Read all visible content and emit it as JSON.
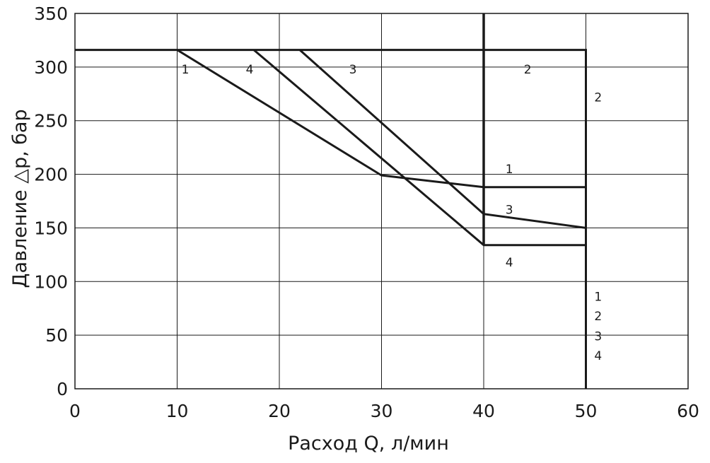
{
  "chart_data": {
    "type": "line",
    "xlabel": "Расход Q, л/мин",
    "ylabel": "Давление △p, бар",
    "xlim": [
      0,
      60
    ],
    "ylim": [
      0,
      350
    ],
    "x_ticks": [
      "0",
      "10",
      "20",
      "30",
      "40",
      "50",
      "60"
    ],
    "y_ticks": [
      "0",
      "50",
      "100",
      "150",
      "200",
      "250",
      "300",
      "350"
    ],
    "grid": true,
    "series": [
      {
        "name": "1",
        "points": [
          [
            10,
            316
          ],
          [
            30,
            199
          ],
          [
            40,
            188
          ],
          [
            50,
            188
          ],
          [
            50,
            0
          ]
        ]
      },
      {
        "name": "2",
        "points": [
          [
            0,
            316
          ],
          [
            50,
            316
          ],
          [
            50,
            0
          ]
        ]
      },
      {
        "name": "3",
        "points": [
          [
            22,
            316
          ],
          [
            40,
            163
          ],
          [
            50,
            150
          ],
          [
            50,
            0
          ]
        ]
      },
      {
        "name": "4",
        "points": [
          [
            17.5,
            316
          ],
          [
            40,
            134
          ],
          [
            50,
            134
          ],
          [
            50,
            0
          ]
        ]
      }
    ],
    "vertical_line": {
      "x": 40,
      "y_range": [
        134,
        350
      ]
    },
    "annotations": [
      {
        "text": "1",
        "x": 10.8,
        "y": 298
      },
      {
        "text": "4",
        "x": 17.1,
        "y": 298
      },
      {
        "text": "3",
        "x": 27.2,
        "y": 298
      },
      {
        "text": "2",
        "x": 44.3,
        "y": 298
      },
      {
        "text": "2",
        "x": 51.2,
        "y": 272
      },
      {
        "text": "1",
        "x": 42.5,
        "y": 205
      },
      {
        "text": "3",
        "x": 42.5,
        "y": 167
      },
      {
        "text": "4",
        "x": 42.5,
        "y": 118
      },
      {
        "text": "1",
        "x": 51.2,
        "y": 86
      },
      {
        "text": "2",
        "x": 51.2,
        "y": 68
      },
      {
        "text": "3",
        "x": 51.2,
        "y": 49
      },
      {
        "text": "4",
        "x": 51.2,
        "y": 31
      }
    ]
  }
}
